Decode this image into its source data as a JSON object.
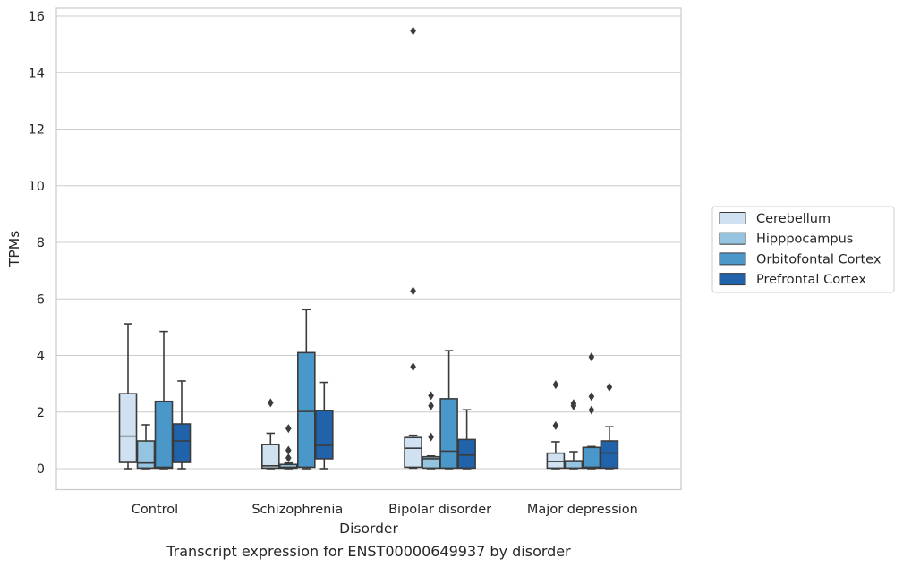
{
  "caption": "Transcript expression for ENST00000649937 by disorder",
  "chart_data": {
    "type": "box",
    "title": "",
    "xlabel": "Disorder",
    "ylabel": "TPMs",
    "ylim": [
      -0.75,
      16.3
    ],
    "yticks": [
      0,
      2,
      4,
      6,
      8,
      10,
      12,
      14,
      16
    ],
    "grid": "horizontal",
    "legend_position": "right",
    "categories": [
      "Control",
      "Schizophrenia",
      "Bipolar disorder",
      "Major depression"
    ],
    "series": [
      {
        "name": "Cerebellum",
        "color": "#d0e1f2",
        "boxes": [
          {
            "min": 0.0,
            "q1": 0.22,
            "median": 1.15,
            "q3": 2.65,
            "max": 5.12,
            "outliers": []
          },
          {
            "min": 0.0,
            "q1": 0.02,
            "median": 0.1,
            "q3": 0.85,
            "max": 1.25,
            "outliers": [
              2.33
            ]
          },
          {
            "min": 0.02,
            "q1": 0.05,
            "median": 0.72,
            "q3": 1.1,
            "max": 1.18,
            "outliers": [
              3.6,
              6.28,
              15.48
            ]
          },
          {
            "min": 0.0,
            "q1": 0.02,
            "median": 0.25,
            "q3": 0.55,
            "max": 0.95,
            "outliers": [
              1.52,
              2.97
            ]
          }
        ]
      },
      {
        "name": "Hipppocampus",
        "color": "#94c4df",
        "boxes": [
          {
            "min": 0.0,
            "q1": 0.02,
            "median": 0.2,
            "q3": 0.98,
            "max": 1.55,
            "outliers": []
          },
          {
            "min": 0.0,
            "q1": 0.02,
            "median": 0.05,
            "q3": 0.15,
            "max": 0.2,
            "outliers": [
              0.38,
              0.65,
              1.42
            ]
          },
          {
            "min": 0.0,
            "q1": 0.02,
            "median": 0.35,
            "q3": 0.42,
            "max": 0.45,
            "outliers": [
              1.12,
              2.22,
              2.58
            ]
          },
          {
            "min": 0.0,
            "q1": 0.02,
            "median": 0.25,
            "q3": 0.28,
            "max": 0.6,
            "outliers": [
              2.22,
              2.3
            ]
          }
        ]
      },
      {
        "name": "Orbitofontal Cortex",
        "color": "#4a98c9",
        "boxes": [
          {
            "min": 0.0,
            "q1": 0.02,
            "median": 0.05,
            "q3": 2.38,
            "max": 4.85,
            "outliers": []
          },
          {
            "min": 0.0,
            "q1": 0.05,
            "median": 2.02,
            "q3": 4.1,
            "max": 5.62,
            "outliers": []
          },
          {
            "min": 0.0,
            "q1": 0.02,
            "median": 0.62,
            "q3": 2.47,
            "max": 4.17,
            "outliers": []
          },
          {
            "min": 0.0,
            "q1": 0.02,
            "median": 0.05,
            "q3": 0.75,
            "max": 0.78,
            "outliers": [
              2.07,
              2.55,
              3.95
            ]
          }
        ]
      },
      {
        "name": "Prefrontal Cortex",
        "color": "#2163aa",
        "boxes": [
          {
            "min": 0.0,
            "q1": 0.22,
            "median": 0.98,
            "q3": 1.58,
            "max": 3.1,
            "outliers": []
          },
          {
            "min": 0.0,
            "q1": 0.35,
            "median": 0.82,
            "q3": 2.05,
            "max": 3.05,
            "outliers": []
          },
          {
            "min": 0.0,
            "q1": 0.02,
            "median": 0.48,
            "q3": 1.03,
            "max": 2.08,
            "outliers": []
          },
          {
            "min": 0.0,
            "q1": 0.02,
            "median": 0.55,
            "q3": 0.98,
            "max": 1.48,
            "outliers": [
              2.88
            ]
          }
        ]
      }
    ]
  }
}
